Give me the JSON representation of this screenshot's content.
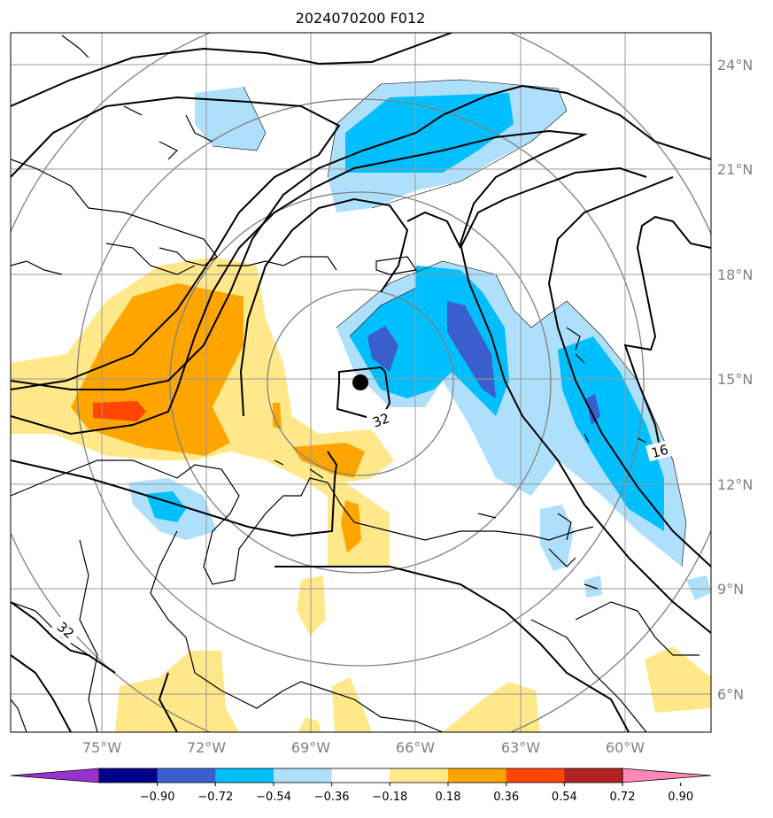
{
  "title": "2024070200 F012",
  "lat_labels": [
    "24°N",
    "21°N",
    "18°N",
    "15°N",
    "12°N",
    "9°N",
    "6°N"
  ],
  "lon_labels": [
    "75°W",
    "72°W",
    "69°W",
    "66°W",
    "63°W",
    "60°W"
  ],
  "contour_labels": [
    "32",
    "16",
    "32"
  ],
  "colorbar": {
    "tick_labels": [
      "−0.90",
      "−0.72",
      "−0.54",
      "−0.36",
      "−0.18",
      "0.18",
      "0.36",
      "0.54",
      "0.72",
      "0.90"
    ],
    "colors": [
      "#9932cc",
      "#00008b",
      "#3a5fcd",
      "#00bfff",
      "#afe0fb",
      "#ffffff",
      "#ffe88a",
      "#ffa500",
      "#ff4500",
      "#b22222",
      "#ff88b4"
    ]
  },
  "fill_colors": {
    "neg_036_054": "#00bfff",
    "neg_018_036": "#afe0fb",
    "neg_054_072": "#3a5fcd",
    "pos_018_036": "#ffe88a",
    "pos_036_054": "#ffa500",
    "pos_054_072": "#ff4500"
  },
  "center_marker_color": "#000000"
}
